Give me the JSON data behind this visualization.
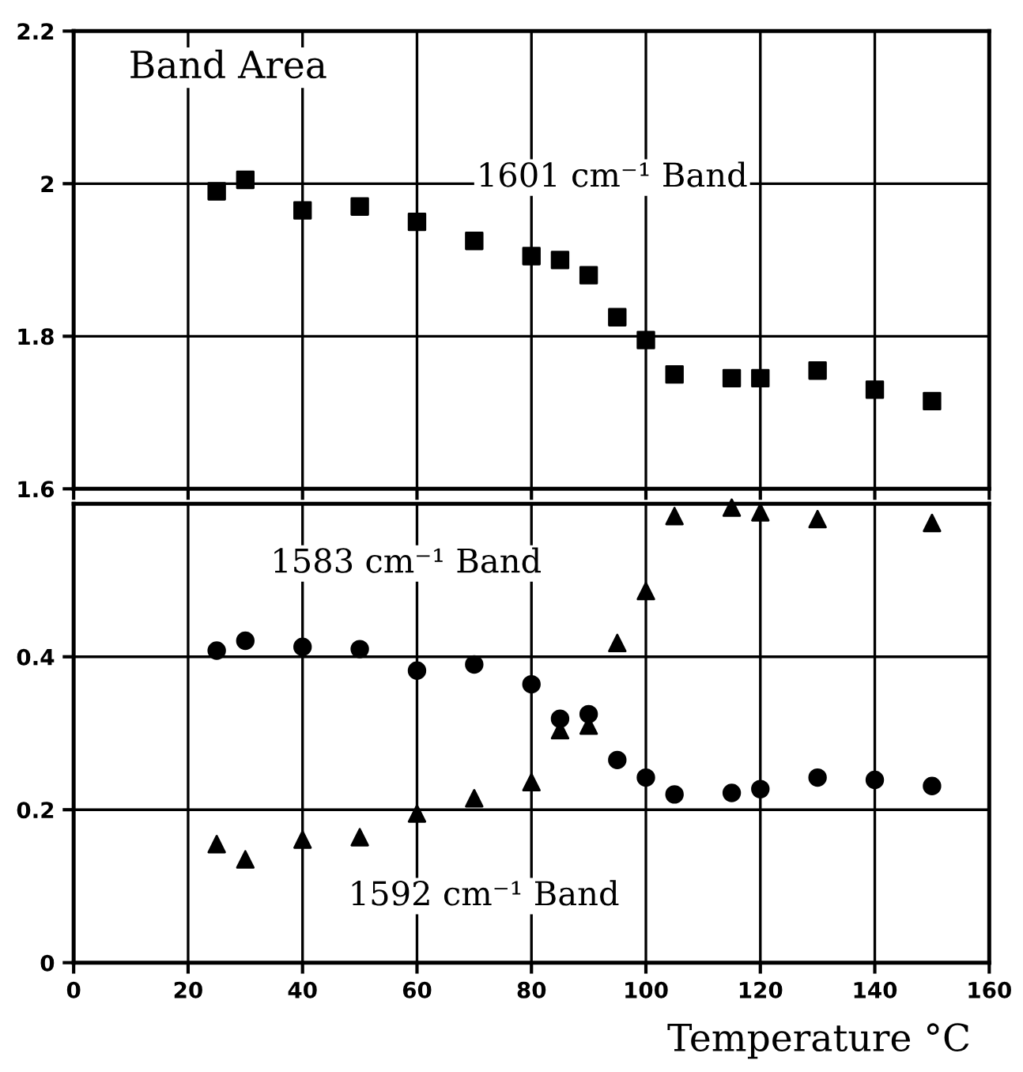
{
  "chart_data": [
    {
      "type": "scatter",
      "ylabel": "Band Area",
      "xlim": [
        0,
        160
      ],
      "xticks": [
        0,
        20,
        40,
        60,
        80,
        100,
        120,
        140,
        160
      ],
      "ylim": [
        1.6,
        2.2
      ],
      "yticks": [
        1.6,
        1.8,
        2,
        2.2
      ],
      "tick_labels": "y",
      "grid": true,
      "x": [
        25,
        30,
        40,
        50,
        60,
        70,
        80,
        85,
        90,
        95,
        100,
        105,
        115,
        120,
        130,
        140,
        150
      ],
      "series": [
        {
          "name": "1601 cm⁻¹ Band",
          "color": "#000000",
          "marker": "square",
          "values": [
            1.99,
            2.005,
            1.965,
            1.97,
            1.95,
            1.925,
            1.905,
            1.9,
            1.88,
            1.825,
            1.795,
            1.75,
            1.745,
            1.745,
            1.755,
            1.73,
            1.715
          ]
        }
      ]
    },
    {
      "type": "scatter",
      "xlabel": "Temperature °C",
      "xlim": [
        0,
        160
      ],
      "xticks": [
        0,
        20,
        40,
        60,
        80,
        100,
        120,
        140,
        160
      ],
      "ylim": [
        0,
        0.6
      ],
      "yticks": [
        0,
        0.2,
        0.4
      ],
      "grid": true,
      "x": [
        25,
        30,
        40,
        50,
        60,
        70,
        80,
        85,
        90,
        95,
        100,
        105,
        115,
        120,
        130,
        140,
        150
      ],
      "series": [
        {
          "name": "1583 cm⁻¹ Band",
          "color": "#000000",
          "marker": "circle",
          "values": [
            0.408,
            0.421,
            0.413,
            0.41,
            0.382,
            0.39,
            0.364,
            0.319,
            0.325,
            0.265,
            0.242,
            0.22,
            0.222,
            0.227,
            0.242,
            0.239,
            0.231
          ]
        },
        {
          "name": "1592 cm⁻¹ Band",
          "color": "#000000",
          "marker": "triangle",
          "values": [
            0.155,
            0.135,
            0.161,
            0.164,
            0.195,
            0.215,
            0.236,
            0.304,
            0.31,
            0.418,
            0.486,
            0.584,
            0.595,
            0.589,
            0.58,
            null,
            0.575
          ]
        }
      ]
    }
  ]
}
